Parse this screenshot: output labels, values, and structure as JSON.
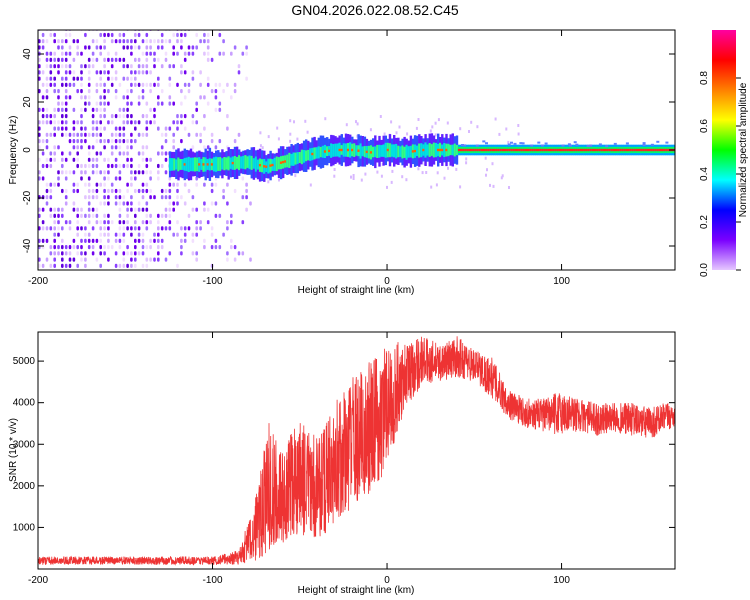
{
  "title": "GN04.2026.022.08.52.C45",
  "chart_data": [
    {
      "type": "heatmap",
      "xlabel": "Height of straight line (km)",
      "ylabel": "Frequency (Hz)",
      "xlim": [
        -200,
        165
      ],
      "ylim": [
        -50,
        50
      ],
      "x_ticks": [
        "-200",
        "-100",
        "0",
        "100"
      ],
      "y_ticks": [
        "-40",
        "-20",
        "0",
        "20",
        "40"
      ],
      "colorbar": {
        "label": "Normalized spectral amplitude",
        "range": [
          0,
          1
        ],
        "ticks": [
          "0.0",
          "0.2",
          "0.4",
          "0.6",
          "0.8"
        ],
        "colors": [
          "#e6c8ff",
          "#7a00ff",
          "#0000ff",
          "#00ffff",
          "#00ff00",
          "#ffff00",
          "#ff8000",
          "#ff0000",
          "#ff00a0"
        ]
      },
      "features": {
        "noise_region_x": [
          -200,
          -80
        ],
        "signal_start_x": -125,
        "signal_track": [
          {
            "x": -125,
            "y": -6
          },
          {
            "x": -100,
            "y": -6
          },
          {
            "x": -80,
            "y": -5
          },
          {
            "x": -70,
            "y": -7
          },
          {
            "x": -60,
            "y": -5
          },
          {
            "x": -50,
            "y": -3
          },
          {
            "x": -40,
            "y": -1
          },
          {
            "x": -30,
            "y": 0
          },
          {
            "x": -20,
            "y": 0
          },
          {
            "x": -10,
            "y": -1
          },
          {
            "x": 0,
            "y": 0
          },
          {
            "x": 10,
            "y": -1
          },
          {
            "x": 20,
            "y": 0
          },
          {
            "x": 40,
            "y": 0
          },
          {
            "x": 165,
            "y": 0
          }
        ]
      }
    },
    {
      "type": "line",
      "xlabel": "Height of straight line (km)",
      "ylabel": "SNR (10 * v/v)",
      "xlim": [
        -200,
        165
      ],
      "ylim": [
        0,
        5700
      ],
      "x_ticks": [
        "-200",
        "-100",
        "0",
        "100"
      ],
      "y_ticks": [
        "1000",
        "2000",
        "3000",
        "4000",
        "5000"
      ],
      "series": [
        {
          "color": "#ee3333",
          "envelope": [
            {
              "x": -200,
              "low": 100,
              "high": 300
            },
            {
              "x": -100,
              "low": 100,
              "high": 300
            },
            {
              "x": -85,
              "low": 100,
              "high": 450
            },
            {
              "x": -75,
              "low": 200,
              "high": 1800
            },
            {
              "x": -68,
              "low": 400,
              "high": 3600
            },
            {
              "x": -60,
              "low": 600,
              "high": 2900
            },
            {
              "x": -50,
              "low": 800,
              "high": 3600
            },
            {
              "x": -40,
              "low": 700,
              "high": 3300
            },
            {
              "x": -30,
              "low": 1000,
              "high": 4000
            },
            {
              "x": -20,
              "low": 1500,
              "high": 4600
            },
            {
              "x": -10,
              "low": 1800,
              "high": 5000
            },
            {
              "x": 0,
              "low": 2400,
              "high": 5400
            },
            {
              "x": 10,
              "low": 3800,
              "high": 5500
            },
            {
              "x": 20,
              "low": 4400,
              "high": 5650
            },
            {
              "x": 30,
              "low": 4500,
              "high": 5400
            },
            {
              "x": 40,
              "low": 4600,
              "high": 5600
            },
            {
              "x": 50,
              "low": 4500,
              "high": 5300
            },
            {
              "x": 60,
              "low": 4100,
              "high": 5100
            },
            {
              "x": 70,
              "low": 3600,
              "high": 4300
            },
            {
              "x": 80,
              "low": 3400,
              "high": 4100
            },
            {
              "x": 90,
              "low": 3300,
              "high": 4100
            },
            {
              "x": 100,
              "low": 3200,
              "high": 4300
            },
            {
              "x": 110,
              "low": 3300,
              "high": 4100
            },
            {
              "x": 120,
              "low": 3200,
              "high": 4000
            },
            {
              "x": 130,
              "low": 3300,
              "high": 4000
            },
            {
              "x": 140,
              "low": 3200,
              "high": 4000
            },
            {
              "x": 150,
              "low": 3100,
              "high": 3900
            },
            {
              "x": 160,
              "low": 3300,
              "high": 4000
            },
            {
              "x": 165,
              "low": 3400,
              "high": 4000
            }
          ]
        }
      ]
    }
  ]
}
